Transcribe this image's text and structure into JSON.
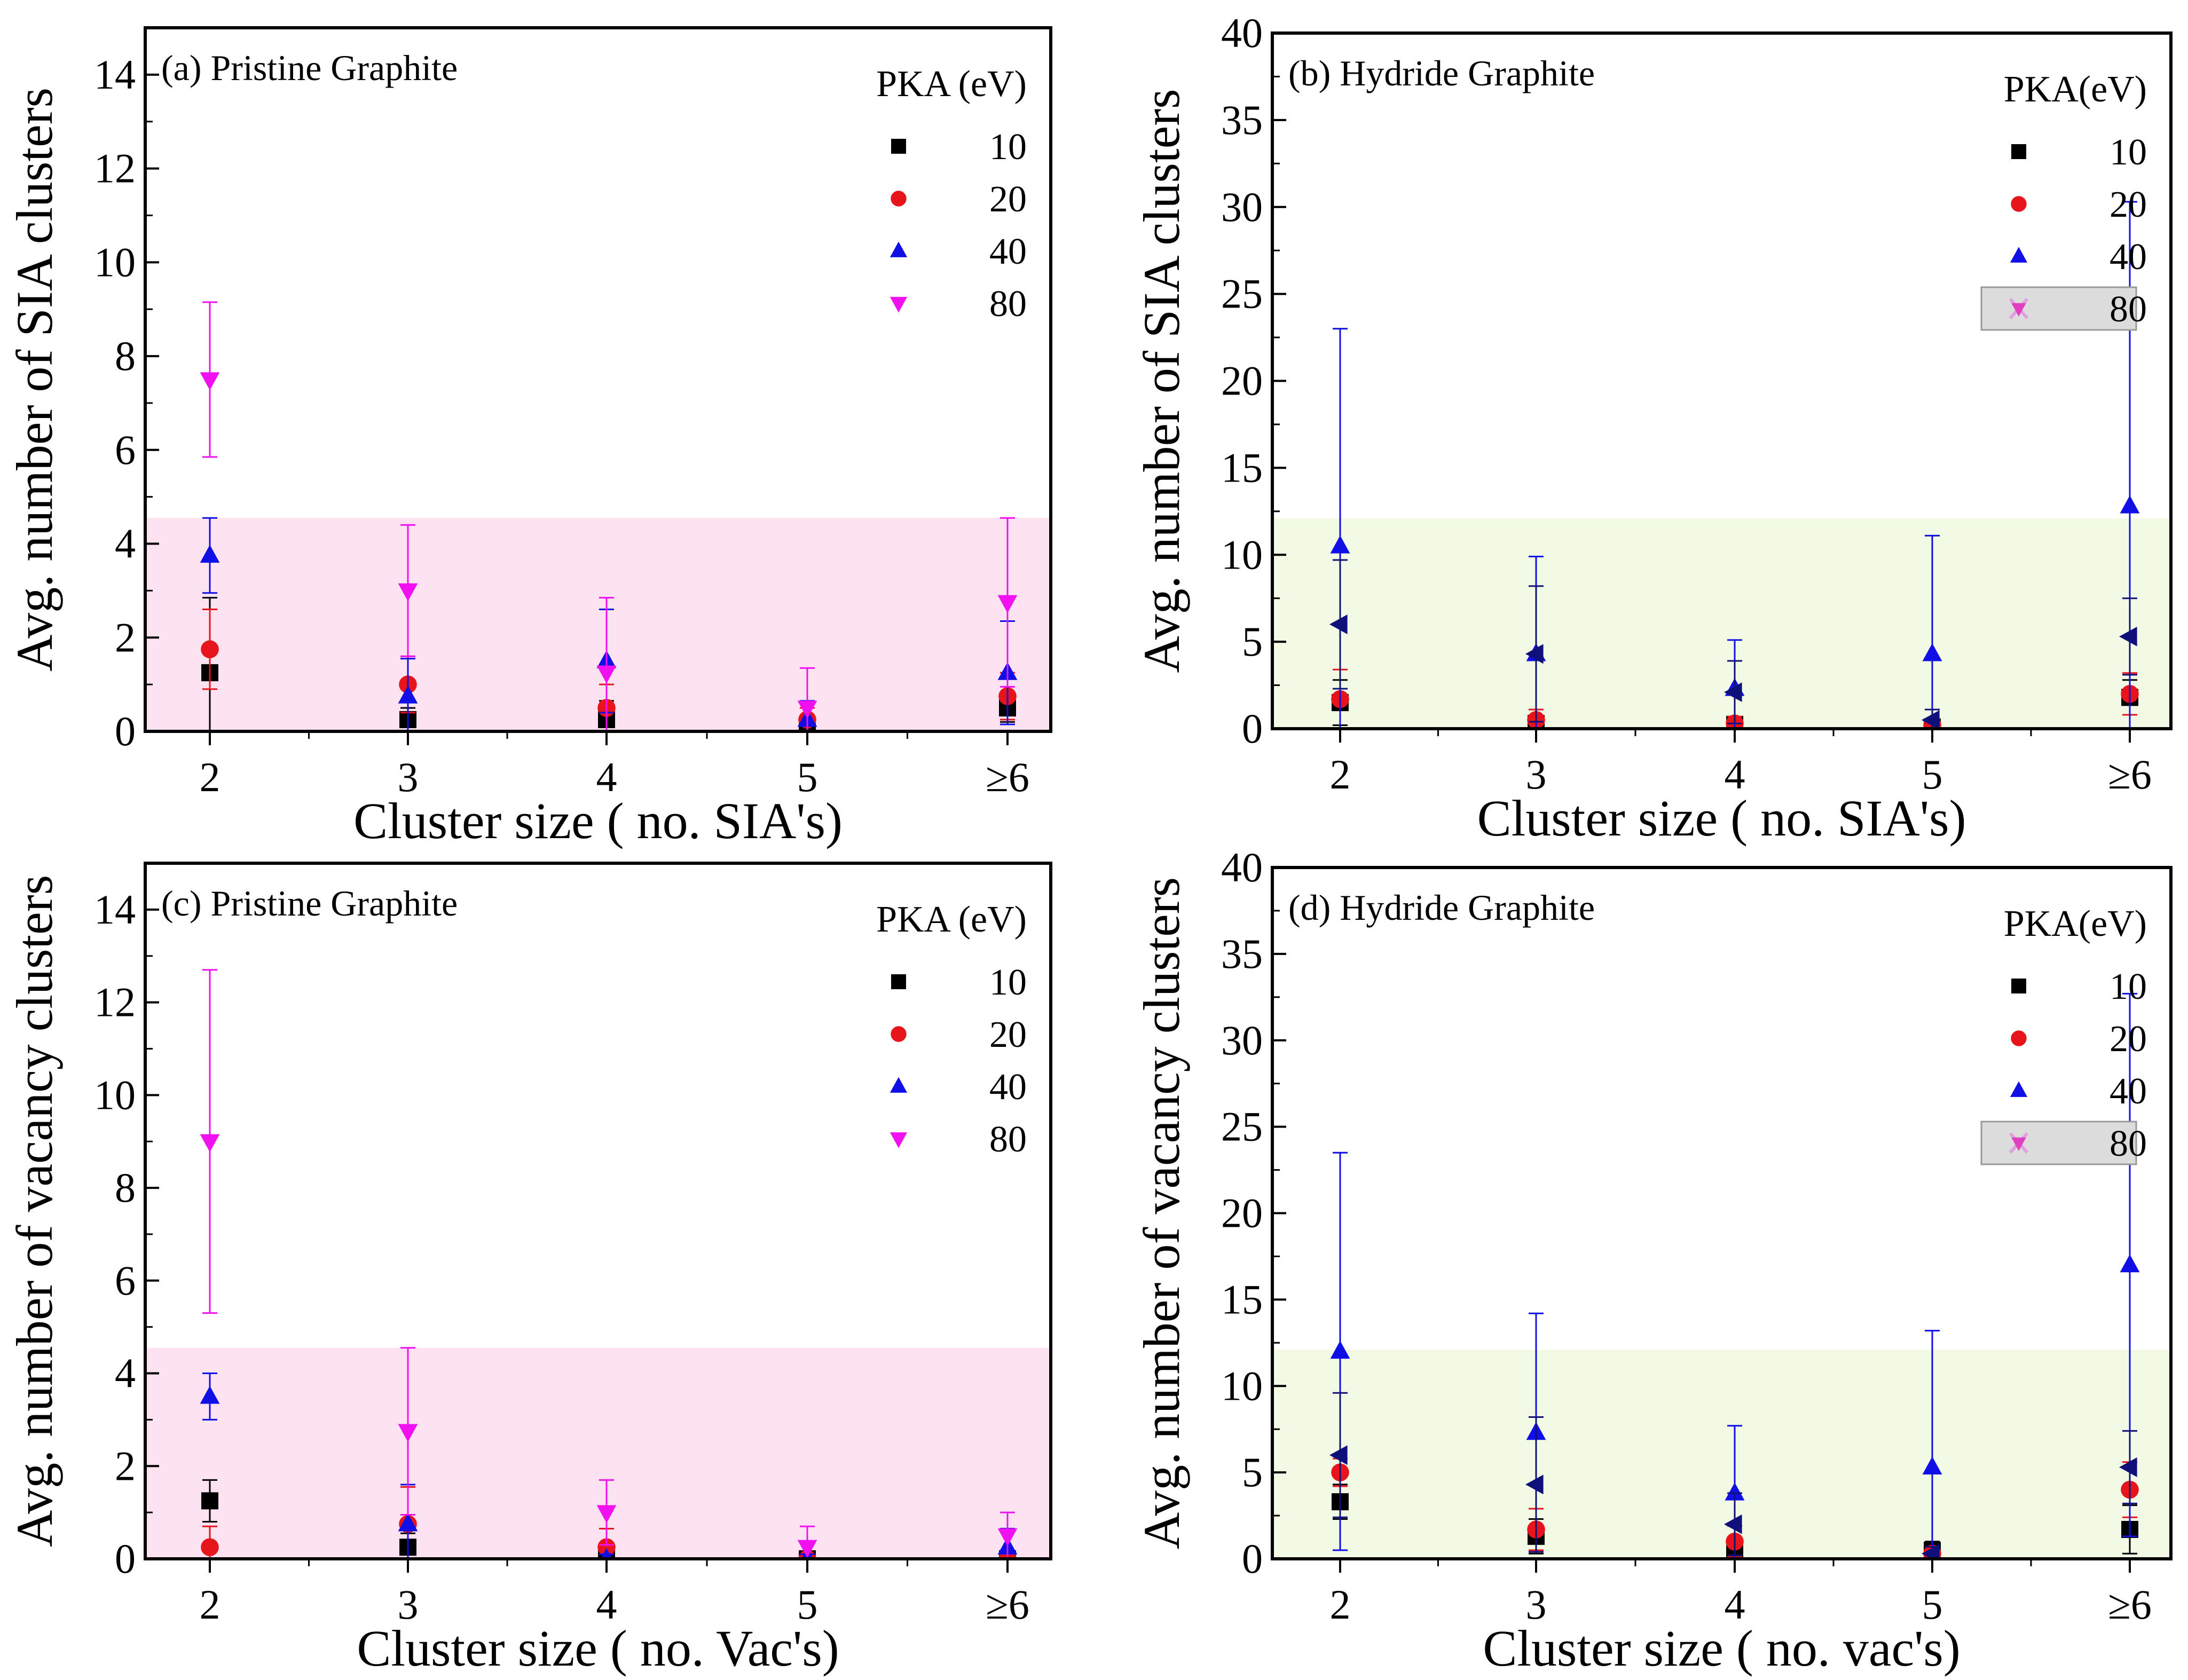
{
  "chart_data": [
    {
      "id": "a",
      "type": "scatter",
      "title": "(a) Pristine Graphite",
      "xlabel": "Cluster size ( no. SIA's)",
      "ylabel": "Avg. number of SIA clusters",
      "categories": [
        "2",
        "3",
        "4",
        "5",
        "≥6"
      ],
      "ylim": [
        0,
        15
      ],
      "yticks": [
        0,
        2,
        4,
        6,
        8,
        10,
        12,
        14
      ],
      "shade": {
        "ymax": 4.55,
        "color": "#fde3f2"
      },
      "legend": {
        "title": "PKA (eV)",
        "position": "top-right",
        "boxed_last": false
      },
      "series": [
        {
          "name": "10",
          "marker": "square",
          "color": "#000000",
          "values": [
            1.25,
            0.25,
            0.25,
            0.0,
            0.5
          ],
          "err": [
            1.6,
            0.25,
            0.4,
            0.25,
            0.3
          ]
        },
        {
          "name": "20",
          "marker": "circle",
          "color": "#e8141b",
          "values": [
            1.75,
            1.0,
            0.5,
            0.25,
            0.75
          ],
          "err": [
            0.85,
            0.6,
            0.5,
            0.25,
            0.5
          ]
        },
        {
          "name": "40",
          "marker": "triangle-up",
          "color": "#1010e6",
          "values": [
            3.75,
            0.75,
            1.5,
            0.25,
            1.25
          ],
          "err": [
            0.8,
            0.8,
            1.1,
            0.4,
            1.1
          ]
        },
        {
          "name": "80",
          "marker": "triangle-down",
          "color": "#f010f0",
          "values": [
            7.5,
            3.0,
            1.25,
            0.5,
            2.75
          ],
          "err": [
            1.65,
            1.4,
            1.6,
            0.85,
            1.8
          ]
        }
      ]
    },
    {
      "id": "b",
      "type": "scatter",
      "title": "(b) Hydride Graphite",
      "xlabel": "Cluster size ( no. SIA's)",
      "ylabel": "Avg. number of SIA clusters",
      "categories": [
        "2",
        "3",
        "4",
        "5",
        "≥6"
      ],
      "ylim": [
        0,
        40
      ],
      "yticks": [
        0,
        5,
        10,
        15,
        20,
        25,
        30,
        35,
        40
      ],
      "shade": {
        "ymax": 12.1,
        "color": "#f2fae6"
      },
      "legend": {
        "title": "PKA(eV)",
        "position": "top-right",
        "boxed_last": true
      },
      "series": [
        {
          "name": "10",
          "marker": "square",
          "color": "#000000",
          "values": [
            1.5,
            0.3,
            0.25,
            0.1,
            1.8
          ],
          "err": [
            1.3,
            0.4,
            0.3,
            0.2,
            1.0
          ]
        },
        {
          "name": "20",
          "marker": "circle",
          "color": "#e8141b",
          "values": [
            1.7,
            0.5,
            0.3,
            0.2,
            2.0
          ],
          "err": [
            1.7,
            0.6,
            0.4,
            0.3,
            1.2
          ]
        },
        {
          "name": "40",
          "marker": "triangle-up",
          "color": "#1010e6",
          "values": [
            10.5,
            4.3,
            2.3,
            4.3,
            12.8
          ],
          "err": [
            12.5,
            5.6,
            2.8,
            6.8,
            17.5
          ]
        },
        {
          "name": "80",
          "marker": "triangle-left",
          "color": "#10107a",
          "values": [
            6.0,
            4.3,
            2.1,
            0.5,
            5.3
          ],
          "err": [
            3.7,
            3.9,
            1.8,
            0.6,
            2.2
          ]
        }
      ]
    },
    {
      "id": "c",
      "type": "scatter",
      "title": "(c) Pristine Graphite",
      "xlabel": "Cluster size ( no. Vac's)",
      "ylabel": "Avg. number of vacancy clusters",
      "categories": [
        "2",
        "3",
        "4",
        "5",
        "≥6"
      ],
      "ylim": [
        0,
        15
      ],
      "yticks": [
        0,
        2,
        4,
        6,
        8,
        10,
        12,
        14
      ],
      "shade": {
        "ymax": 4.55,
        "color": "#fde3f2"
      },
      "legend": {
        "title": "PKA (eV)",
        "position": "top-right",
        "boxed_last": false
      },
      "series": [
        {
          "name": "10",
          "marker": "square",
          "color": "#000000",
          "values": [
            1.25,
            0.25,
            0.0,
            0.0,
            0.0
          ],
          "err": [
            0.45,
            0.3,
            0.1,
            0.1,
            0.1
          ]
        },
        {
          "name": "20",
          "marker": "circle",
          "color": "#e8141b",
          "values": [
            0.25,
            0.75,
            0.25,
            0.0,
            0.0
          ],
          "err": [
            0.45,
            0.8,
            0.4,
            0.1,
            0.1
          ]
        },
        {
          "name": "40",
          "marker": "triangle-up",
          "color": "#1010e6",
          "values": [
            3.5,
            0.75,
            0.0,
            0.0,
            0.25
          ],
          "err": [
            0.5,
            0.85,
            0.1,
            0.1,
            0.4
          ]
        },
        {
          "name": "80",
          "marker": "triangle-down",
          "color": "#f010f0",
          "values": [
            9.0,
            2.75,
            1.0,
            0.25,
            0.5
          ],
          "err": [
            3.7,
            1.8,
            0.7,
            0.45,
            0.5
          ]
        }
      ]
    },
    {
      "id": "d",
      "type": "scatter",
      "title": "(d) Hydride Graphite",
      "xlabel": "Cluster size ( no. vac's)",
      "ylabel": "Avg. number of vacancy clusters",
      "categories": [
        "2",
        "3",
        "4",
        "5",
        "≥6"
      ],
      "ylim": [
        0,
        40
      ],
      "yticks": [
        0,
        5,
        10,
        15,
        20,
        25,
        30,
        35,
        40
      ],
      "shade": {
        "ymax": 12.1,
        "color": "#f2fae6"
      },
      "legend": {
        "title": "PKA(eV)",
        "position": "top-right",
        "boxed_last": true
      },
      "series": [
        {
          "name": "10",
          "marker": "square",
          "color": "#000000",
          "values": [
            3.3,
            1.3,
            0.3,
            0.5,
            1.7
          ],
          "err": [
            1.0,
            1.0,
            0.4,
            0.5,
            1.4
          ]
        },
        {
          "name": "20",
          "marker": "circle",
          "color": "#e8141b",
          "values": [
            5.0,
            1.7,
            1.0,
            0.3,
            4.0
          ],
          "err": [
            0.8,
            1.2,
            0.9,
            0.4,
            1.6
          ]
        },
        {
          "name": "40",
          "marker": "triangle-up",
          "color": "#1010e6",
          "values": [
            12.0,
            7.3,
            3.8,
            5.3,
            17.0
          ],
          "err": [
            11.5,
            6.9,
            3.9,
            7.9,
            15.7
          ]
        },
        {
          "name": "80",
          "marker": "triangle-left",
          "color": "#10107a",
          "values": [
            6.0,
            4.3,
            2.0,
            0.3,
            5.3
          ],
          "err": [
            3.6,
            3.9,
            1.8,
            0.4,
            2.1
          ]
        }
      ]
    }
  ]
}
